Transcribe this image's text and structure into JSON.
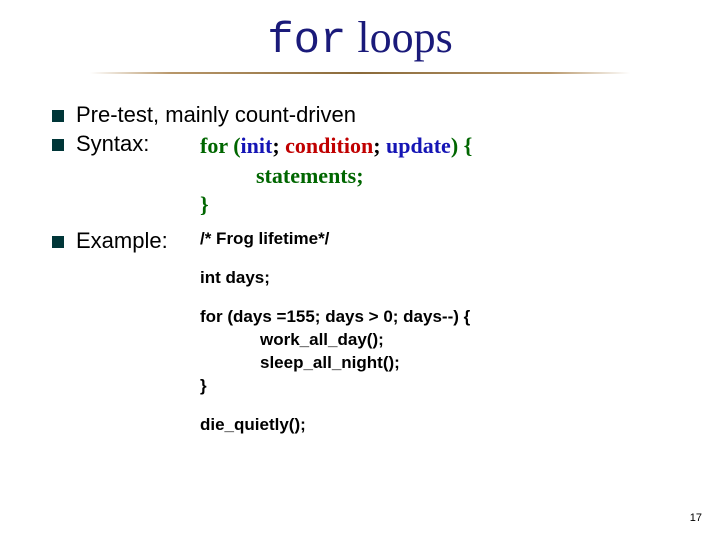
{
  "title": {
    "keyword": "for",
    "rest": " loops"
  },
  "bullets": {
    "b1": "Pre-test, mainly count-driven",
    "b2": "Syntax:",
    "b3": "Example:"
  },
  "syntax": {
    "l1_kw": "for (",
    "l1_init": "init",
    "l1_sep1": "; ",
    "l1_cond": "condition",
    "l1_sep2": "; ",
    "l1_upd": "update",
    "l1_close": ")  {",
    "l2": "statements;",
    "l3": "}"
  },
  "example": {
    "comment": "/* Frog lifetime*/",
    "decl": "int days;",
    "for_line": "for (days =155; days > 0; days--)  {",
    "body1": "work_all_day();",
    "body2": "sleep_all_night();",
    "close": "}",
    "after": "die_quietly();"
  },
  "page": "17",
  "colors": {
    "title": "#1a1a7a",
    "bullet": "#003638",
    "green": "#006600",
    "blue": "#1515b5",
    "red": "#c00000"
  }
}
